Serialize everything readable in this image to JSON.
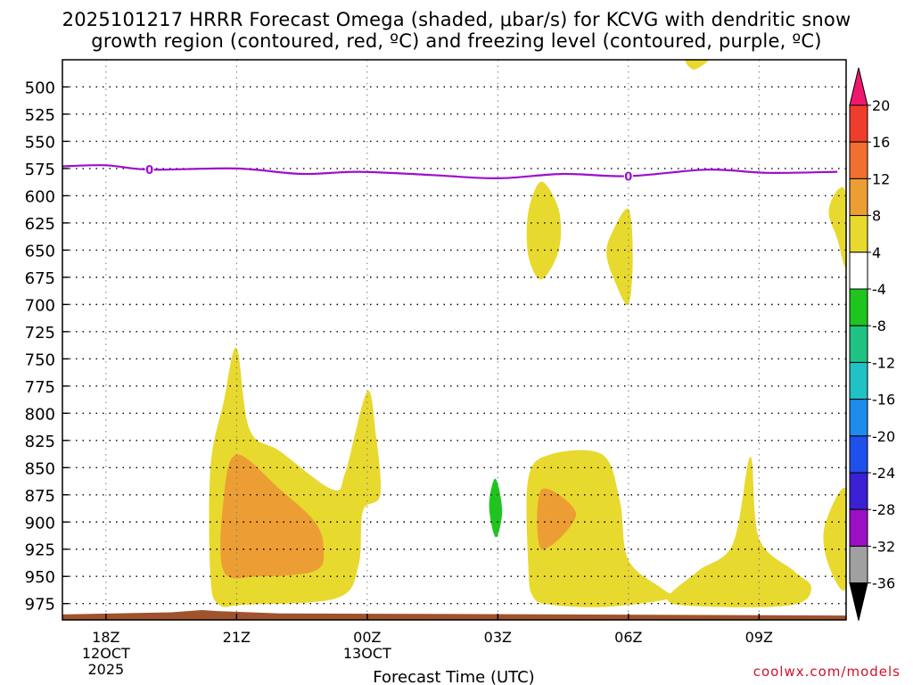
{
  "title_line1": "2025101217 HRRR Forecast Omega (shaded, μbar/s) for KCVG with dendritic snow",
  "title_line2": "growth region (contoured, red, ºC) and freezing level (contoured, purple, ºC)",
  "credit": "coolwx.com/models",
  "chart_data": {
    "type": "contour",
    "title": "2025101217 HRRR Forecast Omega (shaded, μbar/s) for KCVG with dendritic snow growth region (contoured, red, ºC) and freezing level (contoured, purple, ºC)",
    "xlabel": "Forecast Time (UTC)",
    "ylabel": "",
    "x_range_hours": [
      -1,
      17
    ],
    "x_ticks": [
      {
        "hour": 0,
        "label": "18Z",
        "sub1": "12OCT",
        "sub2": "2025"
      },
      {
        "hour": 3,
        "label": "21Z",
        "sub1": "",
        "sub2": ""
      },
      {
        "hour": 6,
        "label": "00Z",
        "sub1": "13OCT",
        "sub2": ""
      },
      {
        "hour": 9,
        "label": "03Z",
        "sub1": "",
        "sub2": ""
      },
      {
        "hour": 12,
        "label": "06Z",
        "sub1": "",
        "sub2": ""
      },
      {
        "hour": 15,
        "label": "09Z",
        "sub1": "",
        "sub2": ""
      }
    ],
    "y_range_hPa": [
      990,
      475
    ],
    "y_ticks": [
      500,
      525,
      550,
      575,
      600,
      625,
      650,
      675,
      700,
      725,
      750,
      775,
      800,
      825,
      850,
      875,
      900,
      925,
      950,
      975
    ],
    "colorbar": {
      "labels": [
        "20",
        "16",
        "12",
        "8",
        "4",
        "-4",
        "-8",
        "-12",
        "-16",
        "-20",
        "-24",
        "-28",
        "-32",
        "-36"
      ],
      "colors": [
        "#f0176f",
        "#f03c2d",
        "#f36f2f",
        "#ec9e34",
        "#e8d92f",
        "#ffffff",
        "#1fc51f",
        "#1ec383",
        "#20c2c5",
        "#1e8cec",
        "#1e50ec",
        "#3a20d2",
        "#9c10c5",
        "#a0a0a0",
        "#000000"
      ]
    },
    "freezing_level": {
      "label": "0",
      "points": [
        [
          -1,
          573
        ],
        [
          0,
          572
        ],
        [
          1,
          576
        ],
        [
          3,
          575
        ],
        [
          4.5,
          580
        ],
        [
          5.8,
          578
        ],
        [
          7.5,
          581
        ],
        [
          9,
          584
        ],
        [
          10.5,
          580
        ],
        [
          12,
          582
        ],
        [
          13.8,
          576
        ],
        [
          15.2,
          579
        ],
        [
          16.8,
          578
        ]
      ],
      "label_hours": [
        1,
        12
      ]
    },
    "omega_regions": [
      {
        "level": "4 to 8",
        "color": "#e8d92f",
        "points": [
          [
            2.6,
            976
          ],
          [
            2.4,
            950
          ],
          [
            2.4,
            850
          ],
          [
            2.7,
            790
          ],
          [
            3.0,
            740
          ],
          [
            3.3,
            815
          ],
          [
            4.0,
            835
          ],
          [
            5.2,
            870
          ],
          [
            5.5,
            854
          ],
          [
            6.0,
            780
          ],
          [
            6.2,
            820
          ],
          [
            6.3,
            875
          ],
          [
            5.9,
            890
          ],
          [
            5.8,
            940
          ],
          [
            5.3,
            970
          ],
          [
            3.2,
            976
          ]
        ]
      },
      {
        "level": "8 to 12",
        "color": "#ec9e34",
        "points": [
          [
            2.7,
            945
          ],
          [
            2.7,
            880
          ],
          [
            3.0,
            838
          ],
          [
            4.0,
            870
          ],
          [
            4.8,
            900
          ],
          [
            5.0,
            925
          ],
          [
            4.8,
            945
          ],
          [
            3.5,
            950
          ]
        ]
      },
      {
        "level": "4 to 8",
        "color": "#e8d92f",
        "points": [
          [
            9.8,
            968
          ],
          [
            9.7,
            940
          ],
          [
            9.7,
            860
          ],
          [
            10.2,
            838
          ],
          [
            11.4,
            838
          ],
          [
            11.8,
            880
          ],
          [
            12.0,
            935
          ],
          [
            12.8,
            962
          ],
          [
            13.0,
            970
          ],
          [
            11.5,
            978
          ],
          [
            10.2,
            976
          ]
        ]
      },
      {
        "level": "8 to 12",
        "color": "#ec9e34",
        "points": [
          [
            10.0,
            925
          ],
          [
            10.0,
            870
          ],
          [
            10.8,
            893
          ]
        ]
      },
      {
        "level": "4 to 8",
        "color": "#e8d92f",
        "points": [
          [
            12.9,
            972
          ],
          [
            13.6,
            945
          ],
          [
            14.4,
            920
          ],
          [
            14.8,
            840
          ],
          [
            15.0,
            915
          ],
          [
            15.8,
            945
          ],
          [
            16.2,
            960
          ],
          [
            15.8,
            976
          ],
          [
            14.0,
            978
          ]
        ]
      },
      {
        "level": "4 to 8",
        "color": "#e8d92f",
        "points": [
          [
            9.7,
            655
          ],
          [
            9.7,
            615
          ],
          [
            10.0,
            587
          ],
          [
            10.4,
            613
          ],
          [
            10.4,
            650
          ],
          [
            10.0,
            677
          ]
        ]
      },
      {
        "level": "4 to 8",
        "color": "#e8d92f",
        "points": [
          [
            11.5,
            655
          ],
          [
            11.6,
            636
          ],
          [
            12.0,
            612
          ],
          [
            12.1,
            657
          ],
          [
            12.0,
            700
          ],
          [
            11.7,
            680
          ]
        ]
      },
      {
        "level": "4 to 8",
        "color": "#e8d92f",
        "points": [
          [
            13.3,
            472
          ],
          [
            13.9,
            472
          ],
          [
            13.5,
            484
          ]
        ]
      },
      {
        "level": "4 to 8",
        "color": "#e8d92f",
        "points": [
          [
            17.0,
            600
          ],
          [
            17.0,
            665
          ],
          [
            16.8,
            640
          ],
          [
            16.6,
            615
          ],
          [
            16.8,
            595
          ]
        ]
      },
      {
        "level": "4 to 8",
        "color": "#e8d92f",
        "points": [
          [
            17.0,
            870
          ],
          [
            17.0,
            960
          ],
          [
            16.6,
            940
          ],
          [
            16.5,
            905
          ]
        ]
      },
      {
        "level": "-8 to -4",
        "color": "#1fc51f",
        "points": [
          [
            8.9,
            910
          ],
          [
            8.8,
            885
          ],
          [
            8.9,
            862
          ],
          [
            9.0,
            865
          ],
          [
            9.1,
            890
          ],
          [
            9.0,
            912
          ]
        ]
      }
    ],
    "ground": {
      "color": "#a0522d",
      "top_hPa": [
        [
          -1,
          985
        ],
        [
          1.5,
          983
        ],
        [
          2.2,
          981
        ],
        [
          2.6,
          982
        ],
        [
          4,
          984
        ],
        [
          17,
          986
        ]
      ]
    },
    "grid": true
  }
}
